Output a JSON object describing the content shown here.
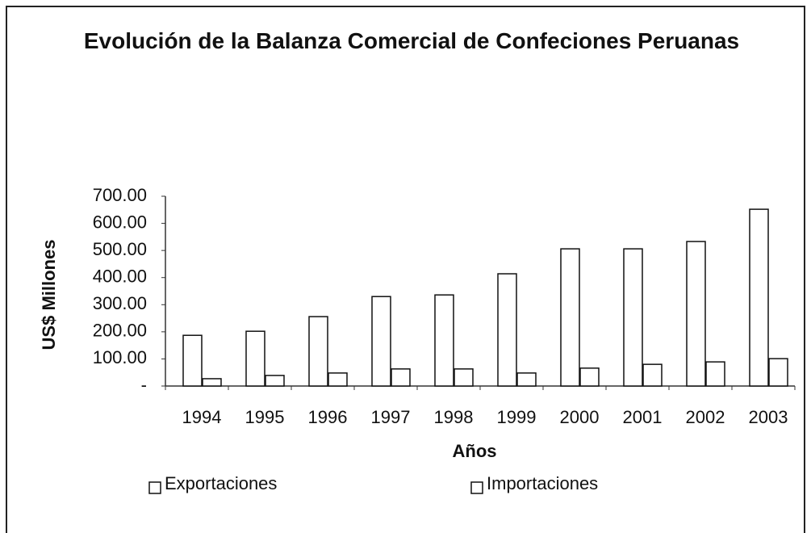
{
  "chart_data": {
    "type": "bar",
    "title": "Evolución de la Balanza Comercial de Confeciones Peruanas",
    "xlabel": "Años",
    "ylabel": "US$ Millones",
    "categories": [
      "1994",
      "1995",
      "1996",
      "1997",
      "1998",
      "1999",
      "2000",
      "2001",
      "2002",
      "2003"
    ],
    "series": [
      {
        "name": "Exportaciones",
        "color": "#ffffff",
        "values": [
          187,
          202,
          256,
          330,
          336,
          414,
          506,
          506,
          533,
          652
        ]
      },
      {
        "name": "Importaciones",
        "color": "#ffffff",
        "values": [
          27,
          39,
          48,
          63,
          63,
          48,
          66,
          80,
          89,
          101
        ]
      }
    ],
    "ylim": [
      0,
      700
    ],
    "yticks": [
      {
        "value": 0,
        "label": "-"
      },
      {
        "value": 100,
        "label": "100.00"
      },
      {
        "value": 200,
        "label": "200.00"
      },
      {
        "value": 300,
        "label": "300.00"
      },
      {
        "value": 400,
        "label": "400.00"
      },
      {
        "value": 500,
        "label": "500.00"
      },
      {
        "value": 600,
        "label": "600.00"
      },
      {
        "value": 700,
        "label": "700.00"
      }
    ],
    "grid": false,
    "legend": "bottom"
  }
}
